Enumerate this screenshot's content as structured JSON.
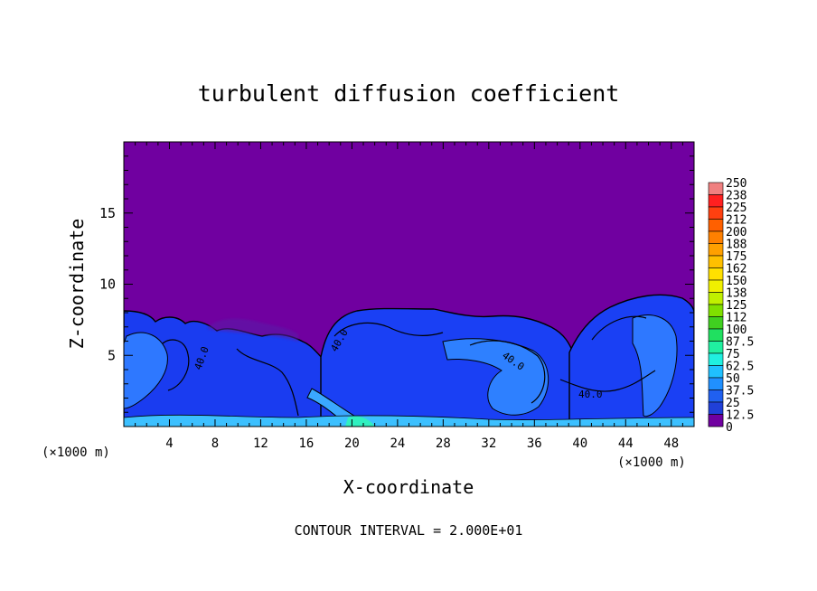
{
  "chart_data": {
    "type": "heatmap",
    "title": "turbulent diffusion coefficient",
    "xlabel": "X-coordinate",
    "ylabel": "Z-coordinate",
    "x_unit_left": "(×1000 m)",
    "x_unit_right": "(×1000 m)",
    "footer": "CONTOUR INTERVAL = 2.000E+01",
    "xlim": [
      0,
      50
    ],
    "ylim": [
      0,
      20
    ],
    "x_ticks": [
      4,
      8,
      12,
      16,
      20,
      24,
      28,
      32,
      36,
      40,
      44,
      48
    ],
    "y_ticks": [
      5,
      10,
      15
    ],
    "contour_labels": [
      "40.0",
      "40.0",
      "40.0",
      "40.0"
    ],
    "colorbar": {
      "labels": [
        "250",
        "238",
        "225",
        "212",
        "200",
        "188",
        "175",
        "162",
        "150",
        "138",
        "125",
        "112",
        "100",
        "87.5",
        "75",
        "62.5",
        "50",
        "37.5",
        "25",
        "12.5",
        "0"
      ],
      "colors": [
        "#f08080",
        "#ff2020",
        "#ff4010",
        "#ff6000",
        "#ff8000",
        "#ffa000",
        "#ffc000",
        "#ffe000",
        "#f0f000",
        "#c0f000",
        "#80e000",
        "#40d020",
        "#20e060",
        "#20f0a0",
        "#20f0e0",
        "#20c0ff",
        "#2090ff",
        "#2060f0",
        "#2040d8",
        "#1020b8",
        "#7000a0"
      ]
    },
    "background_color": "#7000a0"
  }
}
